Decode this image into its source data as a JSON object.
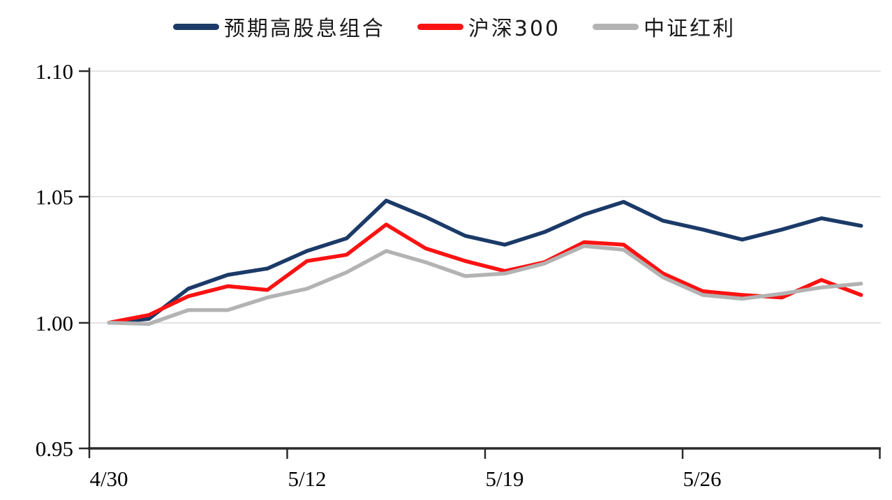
{
  "chart_data": {
    "type": "line",
    "title": "",
    "xlabel": "",
    "ylabel": "",
    "ylim": [
      0.95,
      1.1
    ],
    "y_ticks": [
      1.1,
      1.05,
      1.0,
      0.95
    ],
    "y_tick_labels": [
      "1.10",
      "1.05",
      "1.00",
      "0.95"
    ],
    "x_tick_labels": [
      "4/30",
      "5/12",
      "5/19",
      "5/26"
    ],
    "grid": "light horizontal gridlines at 1.00, 1.05 and 1.10",
    "legend_position": "top-center",
    "x": [
      "4/30",
      "5/6",
      "5/7",
      "5/8",
      "5/9",
      "5/12",
      "5/13",
      "5/14",
      "5/15",
      "5/16",
      "5/19",
      "5/20",
      "5/21",
      "5/22",
      "5/23",
      "5/26",
      "5/27",
      "5/28",
      "5/29",
      "5/30"
    ],
    "series": [
      {
        "name": "预期高股息组合",
        "color": "#1b3a68",
        "values": [
          1.0,
          1.0015,
          1.0135,
          1.019,
          1.0215,
          1.0285,
          1.0335,
          1.0485,
          1.042,
          1.0345,
          1.031,
          1.036,
          1.043,
          1.048,
          1.0405,
          1.037,
          1.033,
          1.037,
          1.0415,
          1.0385
        ]
      },
      {
        "name": "沪深300",
        "color": "#fb1212",
        "values": [
          1.0,
          1.003,
          1.0105,
          1.0145,
          1.013,
          1.0245,
          1.027,
          1.039,
          1.0295,
          1.0245,
          1.0205,
          1.024,
          1.032,
          1.031,
          1.0195,
          1.0125,
          1.011,
          1.01,
          1.017,
          1.011
        ]
      },
      {
        "name": "中证红利",
        "color": "#b3b3b3",
        "values": [
          1.0,
          0.9995,
          1.005,
          1.005,
          1.01,
          1.0135,
          1.02,
          1.0285,
          1.024,
          1.0185,
          1.0195,
          1.0235,
          1.0305,
          1.029,
          1.018,
          1.011,
          1.0095,
          1.0115,
          1.014,
          1.0155
        ]
      }
    ],
    "axis_colors": {
      "axis_line": "#2b2b2b",
      "gridline": "#dcdcdc",
      "label": "#000000"
    }
  }
}
